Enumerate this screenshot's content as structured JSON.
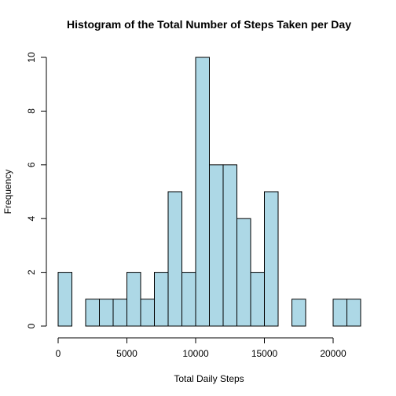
{
  "chart_data": {
    "type": "bar",
    "title": "Histogram of the Total Number of Steps Taken per Day",
    "xlabel": "Total Daily Steps",
    "ylabel": "Frequency",
    "bin_width": 1000,
    "bins_start": [
      0,
      1000,
      2000,
      3000,
      4000,
      5000,
      6000,
      7000,
      8000,
      9000,
      10000,
      11000,
      12000,
      13000,
      14000,
      15000,
      16000,
      17000,
      18000,
      19000,
      20000,
      21000
    ],
    "values": [
      2,
      0,
      1,
      1,
      1,
      2,
      1,
      2,
      5,
      2,
      10,
      6,
      6,
      4,
      2,
      5,
      0,
      1,
      0,
      0,
      1,
      1
    ],
    "xlim": [
      0,
      22000
    ],
    "ylim": [
      0,
      10
    ],
    "x_ticks": [
      0,
      5000,
      10000,
      15000,
      20000
    ],
    "y_ticks": [
      0,
      2,
      4,
      6,
      8,
      10
    ],
    "x_tick_labels": [
      "0",
      "5000",
      "10000",
      "15000",
      "20000"
    ],
    "y_tick_labels": [
      "0",
      "2",
      "4",
      "6",
      "8",
      "10"
    ],
    "bar_color": "#ADD8E6",
    "grid": false
  }
}
